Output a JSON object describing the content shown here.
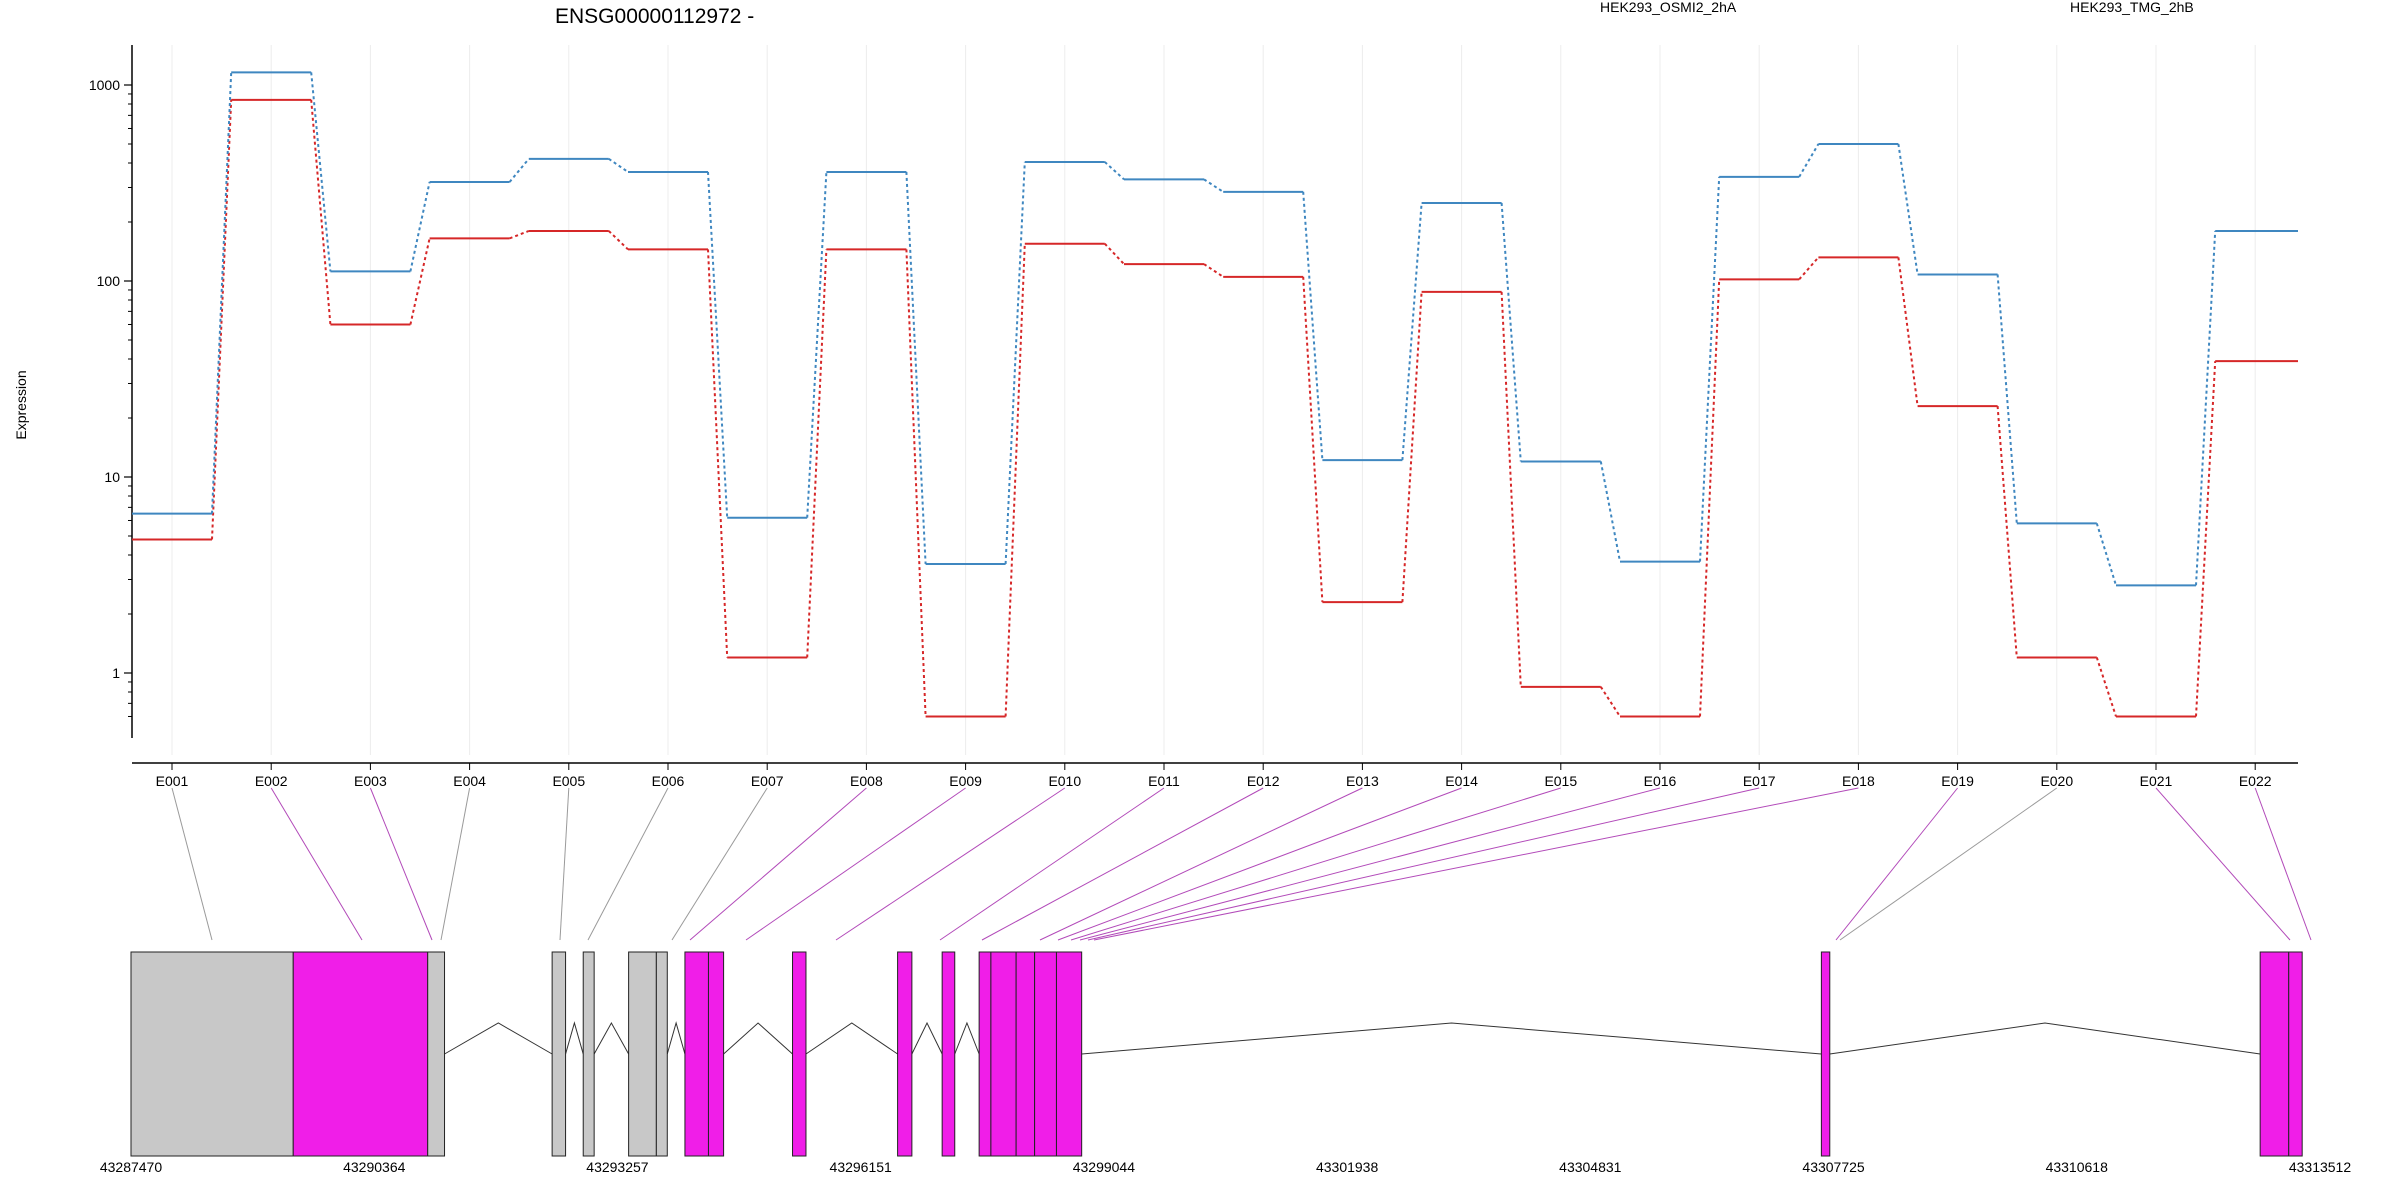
{
  "chart_data": {
    "type": "line",
    "title": "ENSG00000112972 -",
    "ylabel": "Expression",
    "yscale": "log",
    "ylim": [
      0.6,
      1300
    ],
    "yticks": [
      1,
      10,
      100,
      1000
    ],
    "ytick_labels": [
      "1",
      "10",
      "100",
      "1000"
    ],
    "categories": [
      "E001",
      "E002",
      "E003",
      "E004",
      "E005",
      "E006",
      "E007",
      "E008",
      "E009",
      "E010",
      "E011",
      "E012",
      "E013",
      "E014",
      "E015",
      "E016",
      "E017",
      "E018",
      "E019",
      "E020",
      "E021",
      "E022"
    ],
    "series": [
      {
        "name": "HEK293_OSMI2_2hA",
        "color": "#d62728",
        "values": [
          4.8,
          840,
          60,
          165,
          180,
          145,
          1.2,
          145,
          0.6,
          155,
          122,
          105,
          2.3,
          88,
          0.85,
          0.6,
          102,
          132,
          23,
          1.2,
          0.6,
          39
        ]
      },
      {
        "name": "HEK293_TMG_2hB",
        "color": "#3f87c0",
        "values": [
          6.5,
          1160,
          112,
          320,
          420,
          360,
          6.2,
          360,
          3.6,
          405,
          330,
          285,
          12.2,
          250,
          12,
          3.7,
          340,
          500,
          108,
          5.8,
          2.8,
          180
        ]
      }
    ],
    "gene_coordinates": [
      "43287470",
      "43290364",
      "43293257",
      "43296151",
      "43299044",
      "43301938",
      "43304831",
      "43307725",
      "43310618",
      "43313512"
    ],
    "gene_model": {
      "start": 43287470,
      "end": 43313512,
      "exons": [
        {
          "s": 43287470,
          "e": 43289400,
          "type": "noncoding"
        },
        {
          "s": 43289400,
          "e": 43291000,
          "type": "coding"
        },
        {
          "s": 43291000,
          "e": 43291200,
          "type": "noncoding"
        },
        {
          "s": 43292480,
          "e": 43292640,
          "type": "noncoding"
        },
        {
          "s": 43292850,
          "e": 43292980,
          "type": "noncoding"
        },
        {
          "s": 43293390,
          "e": 43293720,
          "type": "noncoding"
        },
        {
          "s": 43293720,
          "e": 43293850,
          "type": "noncoding"
        },
        {
          "s": 43294060,
          "e": 43294340,
          "type": "coding"
        },
        {
          "s": 43294340,
          "e": 43294520,
          "type": "coding"
        },
        {
          "s": 43295340,
          "e": 43295500,
          "type": "coding"
        },
        {
          "s": 43296590,
          "e": 43296760,
          "type": "coding"
        },
        {
          "s": 43297120,
          "e": 43297270,
          "type": "coding"
        },
        {
          "s": 43297560,
          "e": 43297700,
          "type": "coding"
        },
        {
          "s": 43297700,
          "e": 43298000,
          "type": "coding"
        },
        {
          "s": 43298000,
          "e": 43298220,
          "type": "coding"
        },
        {
          "s": 43298220,
          "e": 43298480,
          "type": "coding"
        },
        {
          "s": 43298480,
          "e": 43298780,
          "type": "coding"
        },
        {
          "s": 43307580,
          "e": 43307680,
          "type": "coding"
        },
        {
          "s": 43312800,
          "e": 43313140,
          "type": "coding"
        },
        {
          "s": 43313140,
          "e": 43313300,
          "type": "coding"
        }
      ]
    }
  }
}
